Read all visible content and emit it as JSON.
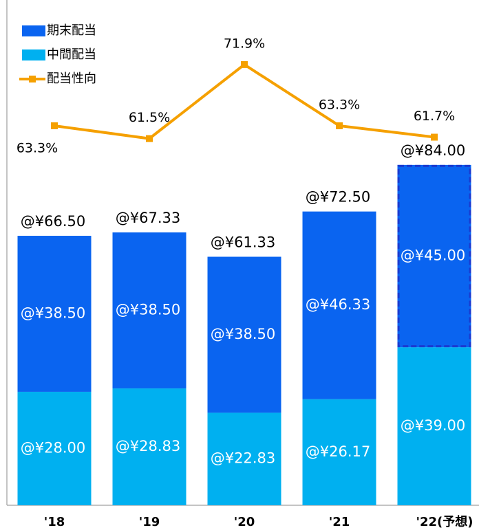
{
  "chart_data": {
    "type": "bar",
    "categories": [
      "'18",
      "'19",
      "'20",
      "'21",
      "'22(予想)"
    ],
    "series": [
      {
        "name": "期末配当",
        "color": "#0a64f0",
        "type": "bar",
        "values": [
          38.5,
          38.5,
          38.5,
          46.33,
          45.0
        ],
        "value_labels": [
          "@¥38.50",
          "@¥38.50",
          "@¥38.50",
          "@¥46.33",
          "@¥45.00"
        ]
      },
      {
        "name": "中間配当",
        "color": "#00b0f0",
        "type": "bar",
        "values": [
          28.0,
          28.83,
          22.83,
          26.17,
          39.0
        ],
        "value_labels": [
          "@¥28.00",
          "@¥28.83",
          "@¥22.83",
          "@¥26.17",
          "@¥39.00"
        ]
      },
      {
        "name": "配当性向",
        "color": "#f5a000",
        "type": "line",
        "axis": "y2",
        "values": [
          63.3,
          61.5,
          71.9,
          63.3,
          61.7
        ],
        "value_labels": [
          "63.3%",
          "61.5%",
          "71.9%",
          "63.3%",
          "61.7%"
        ]
      }
    ],
    "totals": {
      "values": [
        66.5,
        67.33,
        61.33,
        72.5,
        84.0
      ],
      "value_labels": [
        "@¥66.50",
        "@¥67.33",
        "@¥61.33",
        "@¥72.50",
        "@¥84.00"
      ]
    },
    "ylim": [
      0,
      123
    ],
    "y2lim": [
      10,
      80
    ],
    "forecast": {
      "index": 4,
      "label_color": "#ff0000",
      "border_color": "#1a3ad0"
    },
    "legend": "upper left"
  }
}
